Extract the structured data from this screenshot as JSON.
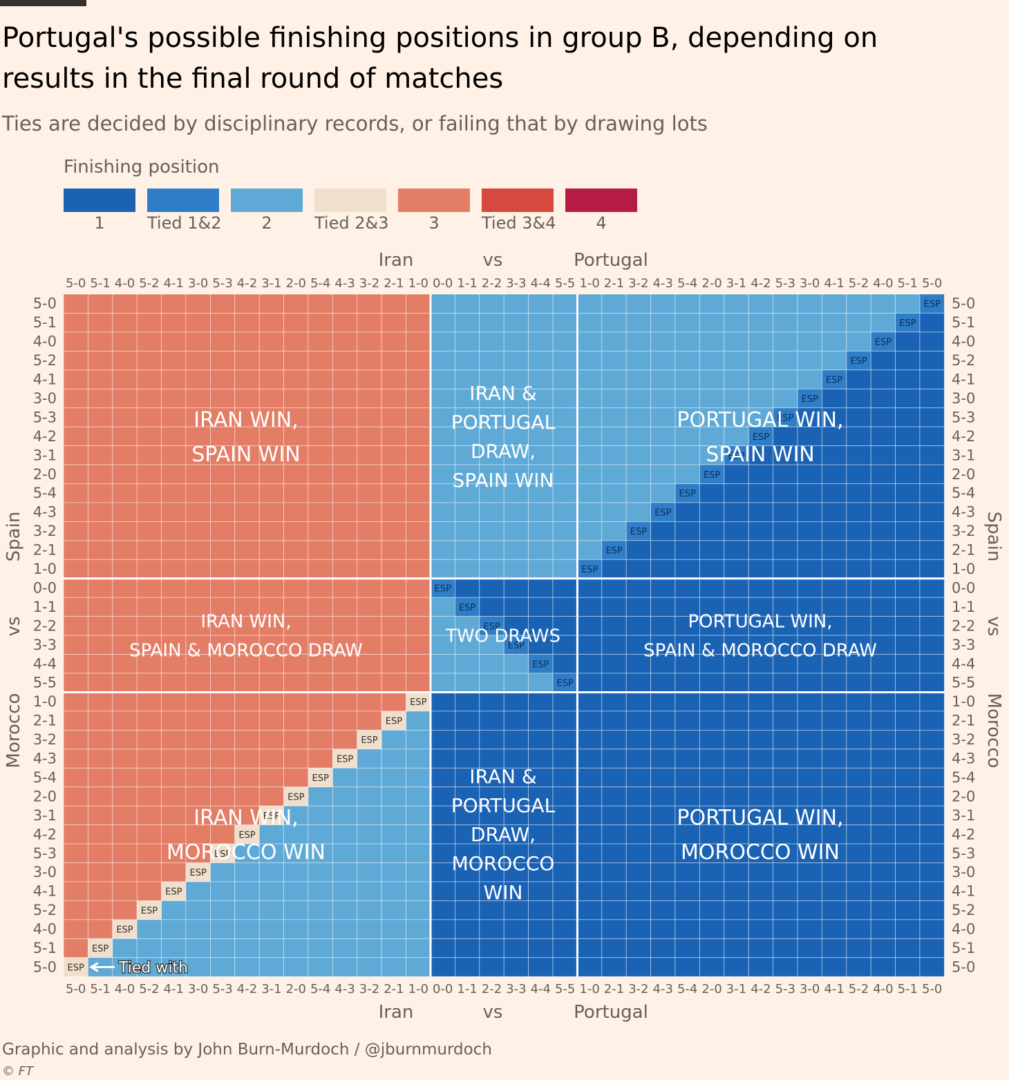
{
  "title": "Portugal's possible finishing positions in group B, depending on results in the final round of matches",
  "subtitle": "Ties are decided by disciplinary records, or failing that by drawing lots",
  "footer": "Graphic and analysis by John Burn-Murdoch / @jburnmurdoch",
  "copyright": "© FT",
  "legend": {
    "title": "Finishing position",
    "items": [
      {
        "label": "1",
        "color": "#1a62b4"
      },
      {
        "label": "Tied 1&2",
        "color": "#2f7dc6"
      },
      {
        "label": "2",
        "color": "#5ea9d5"
      },
      {
        "label": "Tied 2&3",
        "color": "#f0dfcc"
      },
      {
        "label": "3",
        "color": "#e47d66"
      },
      {
        "label": "Tied 3&4",
        "color": "#d5493e"
      },
      {
        "label": "4",
        "color": "#b51c45"
      }
    ]
  },
  "chart_data": {
    "type": "heatmap",
    "x_axis": {
      "label_left": "Iran",
      "label_mid": "vs",
      "label_right": "Portugal",
      "ticks": [
        "5-0",
        "5-1",
        "4-0",
        "5-2",
        "4-1",
        "3-0",
        "5-3",
        "4-2",
        "3-1",
        "2-0",
        "5-4",
        "4-3",
        "3-2",
        "2-1",
        "1-0",
        "0-0",
        "1-1",
        "2-2",
        "3-3",
        "4-4",
        "5-5",
        "1-0",
        "2-1",
        "3-2",
        "4-3",
        "5-4",
        "2-0",
        "3-1",
        "4-2",
        "5-3",
        "3-0",
        "4-1",
        "5-2",
        "4-0",
        "5-1",
        "5-0"
      ]
    },
    "y_axis": {
      "label_top": "Spain",
      "label_mid": "vs",
      "label_bottom": "Morocco",
      "ticks": [
        "5-0",
        "5-1",
        "4-0",
        "5-2",
        "4-1",
        "3-0",
        "5-3",
        "4-2",
        "3-1",
        "2-0",
        "5-4",
        "4-3",
        "3-2",
        "2-1",
        "1-0",
        "0-0",
        "1-1",
        "2-2",
        "3-3",
        "4-4",
        "5-5",
        "1-0",
        "2-1",
        "3-2",
        "4-3",
        "5-4",
        "2-0",
        "3-1",
        "4-2",
        "5-3",
        "3-0",
        "4-1",
        "5-2",
        "4-0",
        "5-1",
        "5-0"
      ]
    },
    "regions": [
      {
        "label": "IRAN WIN,\nSPAIN WIN",
        "position": 3
      },
      {
        "label": "IRAN &\nPORTUGAL\nDRAW,\nSPAIN WIN",
        "position": 2
      },
      {
        "label": "PORTUGAL WIN,\nSPAIN WIN",
        "position": "1 or 2"
      },
      {
        "label": "IRAN WIN,\nSPAIN & MOROCCO DRAW",
        "position": 3
      },
      {
        "label": "TWO DRAWS",
        "position": "1 or 2"
      },
      {
        "label": "PORTUGAL WIN,\nSPAIN & MOROCCO DRAW",
        "position": 1
      },
      {
        "label": "IRAN WIN,\nMOROCCO WIN",
        "position": "2 or 3"
      },
      {
        "label": "IRAN &\nPORTUGAL\nDRAW,\nMOROCCO\nWIN",
        "position": 1
      },
      {
        "label": "PORTUGAL WIN,\nMOROCCO WIN",
        "position": 1
      }
    ],
    "tie_cell_label": "ESP",
    "annotation": "Tied with"
  }
}
